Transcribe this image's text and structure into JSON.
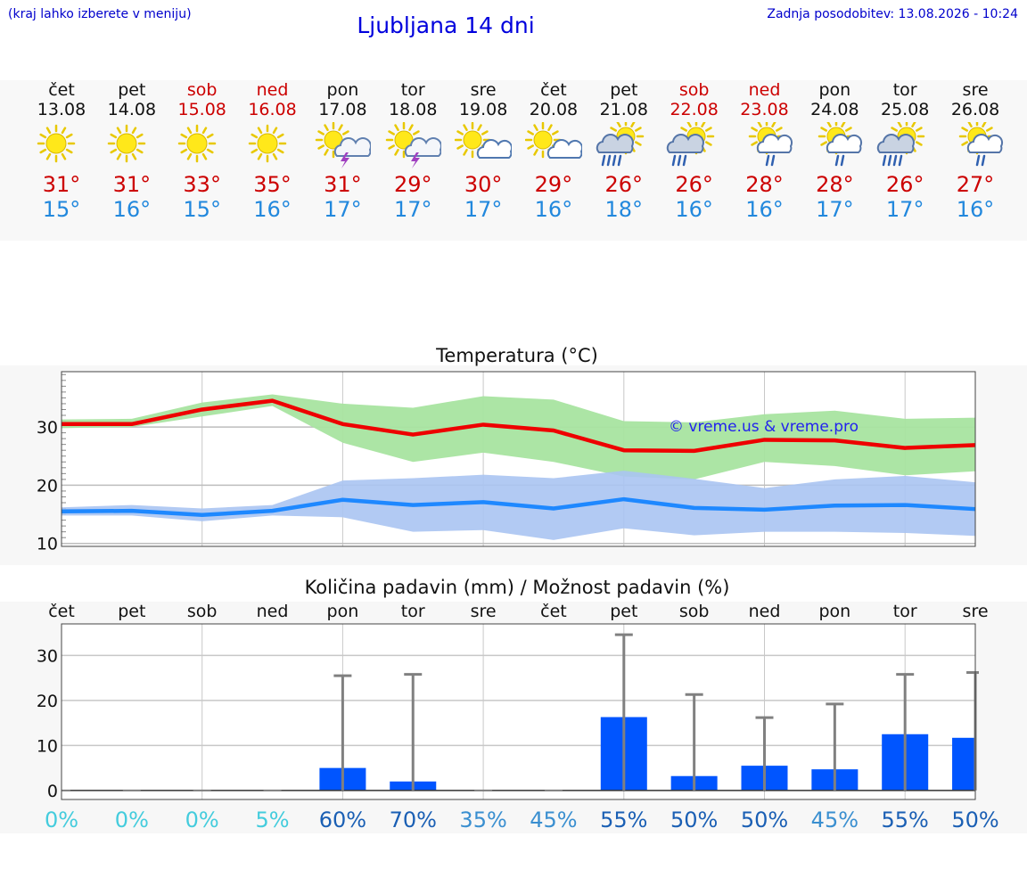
{
  "header": {
    "menu_hint": "(kraj lahko izberete v meniju)",
    "title": "Ljubljana 14 dni",
    "last_update": "Zadnja posodobitev: 13.08.2026 - 10:24"
  },
  "days": [
    {
      "name": "čet",
      "date": "13.08",
      "weekend": false,
      "icon": "sun-icon",
      "tmax": "31°",
      "tmin": "15°"
    },
    {
      "name": "pet",
      "date": "14.08",
      "weekend": false,
      "icon": "sun-icon",
      "tmax": "31°",
      "tmin": "16°"
    },
    {
      "name": "sob",
      "date": "15.08",
      "weekend": true,
      "icon": "sun-icon",
      "tmax": "33°",
      "tmin": "15°"
    },
    {
      "name": "ned",
      "date": "16.08",
      "weekend": true,
      "icon": "sun-icon",
      "tmax": "35°",
      "tmin": "16°"
    },
    {
      "name": "pon",
      "date": "17.08",
      "weekend": false,
      "icon": "sun-thunderstorm-icon",
      "tmax": "31°",
      "tmin": "17°"
    },
    {
      "name": "tor",
      "date": "18.08",
      "weekend": false,
      "icon": "sun-thunderstorm-icon",
      "tmax": "29°",
      "tmin": "17°"
    },
    {
      "name": "sre",
      "date": "19.08",
      "weekend": false,
      "icon": "sun-cloud-icon",
      "tmax": "30°",
      "tmin": "17°"
    },
    {
      "name": "čet",
      "date": "20.08",
      "weekend": false,
      "icon": "sun-cloud-icon",
      "tmax": "29°",
      "tmin": "16°"
    },
    {
      "name": "pet",
      "date": "21.08",
      "weekend": false,
      "icon": "sun-cloud-heavy-rain-icon",
      "tmax": "26°",
      "tmin": "18°"
    },
    {
      "name": "sob",
      "date": "22.08",
      "weekend": true,
      "icon": "sun-cloud-rain-icon",
      "tmax": "26°",
      "tmin": "16°"
    },
    {
      "name": "ned",
      "date": "23.08",
      "weekend": true,
      "icon": "sun-cloud-light-rain-icon",
      "tmax": "28°",
      "tmin": "16°"
    },
    {
      "name": "pon",
      "date": "24.08",
      "weekend": false,
      "icon": "sun-cloud-light-rain-icon",
      "tmax": "28°",
      "tmin": "17°"
    },
    {
      "name": "tor",
      "date": "25.08",
      "weekend": false,
      "icon": "sun-cloud-heavy-rain-icon",
      "tmax": "26°",
      "tmin": "17°"
    },
    {
      "name": "sre",
      "date": "26.08",
      "weekend": false,
      "icon": "sun-cloud-light-rain-icon",
      "tmax": "27°",
      "tmin": "16°"
    }
  ],
  "colors": {
    "tmax": "#cc0000",
    "tmin": "#2288dd",
    "max_line": "#ee0000",
    "min_line": "#1e88ff",
    "max_band": "#a8e4a0",
    "min_band": "#aac4f2",
    "precip_bar": "#0055ff",
    "errbar": "#808080"
  },
  "chart_data": [
    {
      "type": "line",
      "title": "Temperatura (°C)",
      "watermark": "© vreme.us & vreme.pro",
      "x": [
        "13.08",
        "14.08",
        "15.08",
        "16.08",
        "17.08",
        "18.08",
        "19.08",
        "20.08",
        "21.08",
        "22.08",
        "23.08",
        "24.08",
        "25.08",
        "26.08"
      ],
      "ylim": [
        9.5,
        39.5
      ],
      "yticks": [
        10,
        20,
        30
      ],
      "grid": true,
      "series": [
        {
          "role": "max",
          "values": [
            30.5,
            30.5,
            33.0,
            34.5,
            30.5,
            28.7,
            30.4,
            29.4,
            26.0,
            25.9,
            27.8,
            27.7,
            26.4,
            26.9
          ],
          "band_low": [
            29.8,
            30.0,
            31.8,
            33.6,
            27.3,
            24.0,
            25.6,
            24.0,
            21.5,
            21.0,
            24.0,
            23.3,
            21.7,
            22.4
          ],
          "band_high": [
            31.3,
            31.4,
            34.2,
            35.6,
            34.0,
            33.3,
            35.3,
            34.7,
            31.0,
            30.8,
            32.2,
            32.8,
            31.4,
            31.6
          ]
        },
        {
          "role": "min",
          "values": [
            15.5,
            15.6,
            14.9,
            15.6,
            17.5,
            16.6,
            17.1,
            16.0,
            17.6,
            16.1,
            15.8,
            16.5,
            16.6,
            15.9
          ],
          "band_low": [
            14.8,
            14.8,
            13.8,
            14.8,
            14.5,
            12.0,
            12.3,
            10.6,
            12.6,
            11.4,
            12.0,
            12.0,
            11.8,
            11.3
          ],
          "band_high": [
            16.2,
            16.6,
            16.0,
            16.6,
            20.8,
            21.2,
            21.8,
            21.2,
            22.5,
            21.1,
            19.5,
            21.0,
            21.6,
            20.5
          ]
        }
      ]
    },
    {
      "type": "bar",
      "title": "Količina padavin (mm) / Možnost padavin (%)",
      "categories": [
        "čet",
        "pet",
        "sob",
        "ned",
        "pon",
        "tor",
        "sre",
        "čet",
        "pet",
        "sob",
        "ned",
        "pon",
        "tor",
        "sre"
      ],
      "values": [
        0,
        0,
        0,
        0,
        5,
        2,
        0,
        0,
        16.3,
        3.2,
        5.5,
        4.7,
        12.5,
        11.7
      ],
      "max_values": [
        0,
        0,
        0,
        0,
        25.5,
        25.8,
        0,
        0,
        34.6,
        21.3,
        16.2,
        19.2,
        25.8,
        26.2
      ],
      "probability": [
        "0%",
        "0%",
        "0%",
        "5%",
        "60%",
        "70%",
        "35%",
        "45%",
        "55%",
        "50%",
        "50%",
        "45%",
        "55%",
        "50%"
      ],
      "probability_colors": [
        "#44ccdd",
        "#44ccdd",
        "#44ccdd",
        "#44ccdd",
        "#1a5fb4",
        "#1a5fb4",
        "#3a8fd0",
        "#3a8fd0",
        "#1a5fb4",
        "#1a5fb4",
        "#1a5fb4",
        "#3a8fd0",
        "#1a5fb4",
        "#1a5fb4"
      ],
      "ylim": [
        -2,
        37
      ],
      "yticks": [
        0,
        10,
        20,
        30
      ],
      "grid": true
    }
  ]
}
